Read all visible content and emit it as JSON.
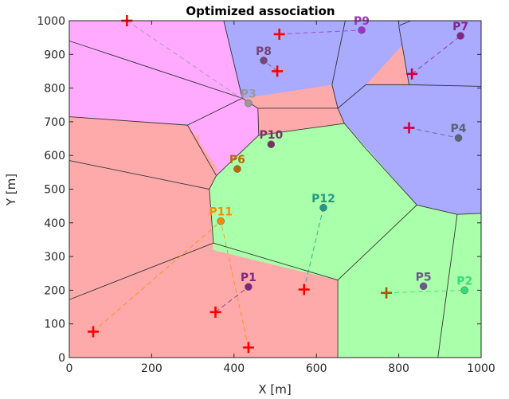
{
  "chart_data": {
    "type": "scatter",
    "title": "Optimized association",
    "xlabel": "X [m]",
    "ylabel": "Y [m]",
    "xlim": [
      0,
      1000
    ],
    "ylim": [
      0,
      1000
    ],
    "xticks": [
      0,
      200,
      400,
      600,
      800,
      1000
    ],
    "yticks": [
      0,
      100,
      200,
      300,
      400,
      500,
      600,
      700,
      800,
      900,
      1000
    ],
    "grid": false,
    "access_points": [
      {
        "name": "P1",
        "x": 435,
        "y": 210,
        "color": "#7a2a80"
      },
      {
        "name": "P2",
        "x": 960,
        "y": 200,
        "color": "#33dd77"
      },
      {
        "name": "P3",
        "x": 435,
        "y": 755,
        "color": "#999999"
      },
      {
        "name": "P4",
        "x": 945,
        "y": 652,
        "color": "#556677"
      },
      {
        "name": "P5",
        "x": 860,
        "y": 212,
        "color": "#6b5a8a"
      },
      {
        "name": "P6",
        "x": 408,
        "y": 560,
        "color": "#b86a00"
      },
      {
        "name": "P7",
        "x": 950,
        "y": 955,
        "color": "#8a2288"
      },
      {
        "name": "P8",
        "x": 472,
        "y": 882,
        "color": "#774477"
      },
      {
        "name": "P9",
        "x": 710,
        "y": 972,
        "color": "#9933cc"
      },
      {
        "name": "P10",
        "x": 490,
        "y": 633,
        "color": "#773366"
      },
      {
        "name": "P11",
        "x": 368,
        "y": 405,
        "color": "#ff8800"
      },
      {
        "name": "P12",
        "x": 617,
        "y": 445,
        "color": "#229988"
      }
    ],
    "users": [
      {
        "x": 140,
        "y": 1000,
        "ap": "P3",
        "color": "#ff0000"
      },
      {
        "x": 510,
        "y": 960,
        "ap": "P9",
        "color": "#ff0000"
      },
      {
        "x": 505,
        "y": 850,
        "ap": "P8",
        "color": "#ff0000"
      },
      {
        "x": 832,
        "y": 842,
        "ap": "P7",
        "color": "#cc0044"
      },
      {
        "x": 825,
        "y": 682,
        "ap": "P4",
        "color": "#cc0044"
      },
      {
        "x": 570,
        "y": 202,
        "ap": "P12",
        "color": "#ff0000"
      },
      {
        "x": 770,
        "y": 192,
        "ap": "P2",
        "color": "#aa5500"
      },
      {
        "x": 355,
        "y": 135,
        "ap": "P1",
        "color": "#ff0000"
      },
      {
        "x": 435,
        "y": 30,
        "ap": "P11",
        "color": "#ff0000"
      },
      {
        "x": 58,
        "y": 77,
        "ap": "P11",
        "color": "#ff0000"
      }
    ],
    "regions": [
      {
        "color": "#ffaaff",
        "points": [
          [
            0,
            1000
          ],
          [
            375,
            1000
          ],
          [
            420,
            770
          ],
          [
            0,
            940
          ]
        ]
      },
      {
        "color": "#ffaaff",
        "points": [
          [
            0,
            940
          ],
          [
            420,
            770
          ],
          [
            287,
            690
          ],
          [
            0,
            715
          ]
        ]
      },
      {
        "color": "#ffaaff",
        "points": [
          [
            287,
            690
          ],
          [
            420,
            770
          ],
          [
            458,
            740
          ],
          [
            450,
            670
          ],
          [
            360,
            560
          ]
        ]
      },
      {
        "color": "#ffaaff",
        "points": [
          [
            287,
            690
          ],
          [
            360,
            560
          ],
          [
            323,
            525
          ],
          [
            315,
            660
          ]
        ]
      },
      {
        "color": "#ffaaff",
        "points": [
          [
            450,
            670
          ],
          [
            458,
            740
          ],
          [
            460,
            660
          ],
          [
            357,
            540
          ],
          [
            360,
            560
          ]
        ]
      },
      {
        "color": "#ffaaff",
        "points": [
          [
            450,
            670
          ],
          [
            460,
            660
          ],
          [
            362,
            556
          ]
        ]
      },
      {
        "color": "#aaaaff",
        "points": [
          [
            375,
            1000
          ],
          [
            670,
            1000
          ],
          [
            638,
            810
          ],
          [
            420,
            770
          ]
        ]
      },
      {
        "color": "#aaaaff",
        "points": [
          [
            670,
            1000
          ],
          [
            830,
            1000
          ],
          [
            825,
            950
          ],
          [
            720,
            810
          ],
          [
            638,
            810
          ]
        ]
      },
      {
        "color": "#aaaaff",
        "points": [
          [
            830,
            1000
          ],
          [
            1000,
            1000
          ],
          [
            1000,
            805
          ],
          [
            825,
            810
          ],
          [
            800,
            985
          ]
        ]
      },
      {
        "color": "#aaaaff",
        "points": [
          [
            638,
            810
          ],
          [
            720,
            810
          ],
          [
            825,
            810
          ],
          [
            1000,
            805
          ],
          [
            1000,
            428
          ],
          [
            942,
            425
          ],
          [
            844,
            453
          ],
          [
            720,
            620
          ],
          [
            668,
            695
          ],
          [
            652,
            740
          ]
        ]
      },
      {
        "color": "#ffaaaa",
        "points": [
          [
            0,
            715
          ],
          [
            287,
            690
          ],
          [
            360,
            560
          ],
          [
            323,
            525
          ],
          [
            315,
            660
          ],
          [
            0,
            585
          ]
        ]
      },
      {
        "color": "#ffaaaa",
        "points": [
          [
            0,
            585
          ],
          [
            340,
            500
          ],
          [
            350,
            320
          ],
          [
            0,
            172
          ]
        ]
      },
      {
        "color": "#ffaaaa",
        "points": [
          [
            0,
            172
          ],
          [
            350,
            320
          ],
          [
            340,
            500
          ],
          [
            0,
            585
          ]
        ]
      },
      {
        "color": "#ffaaaa",
        "points": [
          [
            0,
            172
          ],
          [
            350,
            340
          ],
          [
            652,
            230
          ],
          [
            652,
            0
          ],
          [
            0,
            0
          ]
        ]
      },
      {
        "color": "#ffaaaa",
        "points": [
          [
            0,
            585
          ],
          [
            357,
            540
          ],
          [
            323,
            525
          ],
          [
            287,
            690
          ],
          [
            0,
            715
          ]
        ]
      },
      {
        "color": "#aaffaa",
        "points": [
          [
            340,
            500
          ],
          [
            357,
            540
          ],
          [
            460,
            660
          ],
          [
            668,
            695
          ],
          [
            844,
            453
          ],
          [
            652,
            230
          ],
          [
            350,
            320
          ]
        ]
      },
      {
        "color": "#aaffaa",
        "points": [
          [
            652,
            230
          ],
          [
            844,
            453
          ],
          [
            942,
            425
          ],
          [
            895,
            0
          ],
          [
            652,
            0
          ]
        ]
      },
      {
        "color": "#aaffaa",
        "points": [
          [
            942,
            425
          ],
          [
            1000,
            428
          ],
          [
            1000,
            0
          ],
          [
            895,
            0
          ]
        ]
      }
    ],
    "boundaries": [
      [
        [
          375,
          1000
        ],
        [
          420,
          770
        ]
      ],
      [
        [
          0,
          940
        ],
        [
          420,
          770
        ]
      ],
      [
        [
          420,
          770
        ],
        [
          287,
          690
        ]
      ],
      [
        [
          0,
          715
        ],
        [
          287,
          690
        ]
      ],
      [
        [
          287,
          690
        ],
        [
          357,
          540
        ]
      ],
      [
        [
          420,
          770
        ],
        [
          458,
          740
        ]
      ],
      [
        [
          458,
          740
        ],
        [
          460,
          660
        ]
      ],
      [
        [
          458,
          740
        ],
        [
          652,
          740
        ]
      ],
      [
        [
          670,
          1000
        ],
        [
          638,
          810
        ]
      ],
      [
        [
          638,
          810
        ],
        [
          652,
          740
        ]
      ],
      [
        [
          830,
          1000
        ],
        [
          800,
          985
        ]
      ],
      [
        [
          800,
          985
        ],
        [
          825,
          810
        ]
      ],
      [
        [
          825,
          810
        ],
        [
          1000,
          805
        ]
      ],
      [
        [
          825,
          810
        ],
        [
          720,
          810
        ]
      ],
      [
        [
          720,
          810
        ],
        [
          652,
          740
        ]
      ],
      [
        [
          652,
          740
        ],
        [
          668,
          695
        ]
      ],
      [
        [
          668,
          695
        ],
        [
          460,
          660
        ]
      ],
      [
        [
          460,
          660
        ],
        [
          357,
          540
        ]
      ],
      [
        [
          0,
          585
        ],
        [
          340,
          500
        ]
      ],
      [
        [
          357,
          540
        ],
        [
          340,
          500
        ]
      ],
      [
        [
          340,
          500
        ],
        [
          350,
          340
        ]
      ],
      [
        [
          0,
          172
        ],
        [
          350,
          340
        ]
      ],
      [
        [
          350,
          340
        ],
        [
          652,
          230
        ]
      ],
      [
        [
          652,
          230
        ],
        [
          652,
          0
        ]
      ],
      [
        [
          652,
          230
        ],
        [
          844,
          453
        ]
      ],
      [
        [
          668,
          695
        ],
        [
          720,
          620
        ]
      ],
      [
        [
          720,
          620
        ],
        [
          844,
          453
        ]
      ],
      [
        [
          844,
          453
        ],
        [
          942,
          425
        ]
      ],
      [
        [
          942,
          425
        ],
        [
          1000,
          428
        ]
      ],
      [
        [
          942,
          425
        ],
        [
          895,
          0
        ]
      ]
    ]
  }
}
